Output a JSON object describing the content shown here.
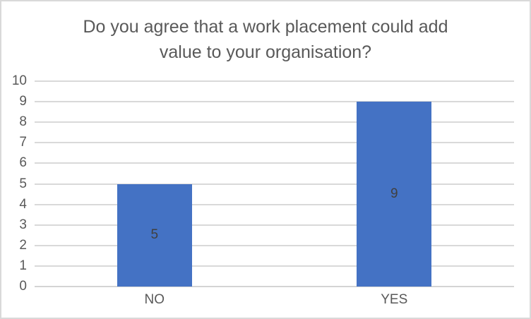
{
  "chart": {
    "title_lines": [
      "Do you agree that a work placement could add",
      "value to your organisation?"
    ]
  },
  "chart_data": {
    "type": "bar",
    "title": "Do you agree that a work placement could add value to your organisation?",
    "categories": [
      "NO",
      "YES"
    ],
    "values": [
      5,
      9
    ],
    "data_labels": [
      "5",
      "9"
    ],
    "xlabel": "",
    "ylabel": "",
    "ylim": [
      0,
      10
    ],
    "yticks": [
      0,
      1,
      2,
      3,
      4,
      5,
      6,
      7,
      8,
      9,
      10
    ],
    "grid": "horizontal",
    "legend": "none",
    "colors": {
      "bar": "#4472C4",
      "gridline": "#D9D9D9",
      "axis_line": "#D4D4D4",
      "title_text": "#595959",
      "tick_text": "#595959",
      "data_label_text": "#404040",
      "border": "#D9D9D9",
      "background": "#FFFFFF"
    }
  }
}
